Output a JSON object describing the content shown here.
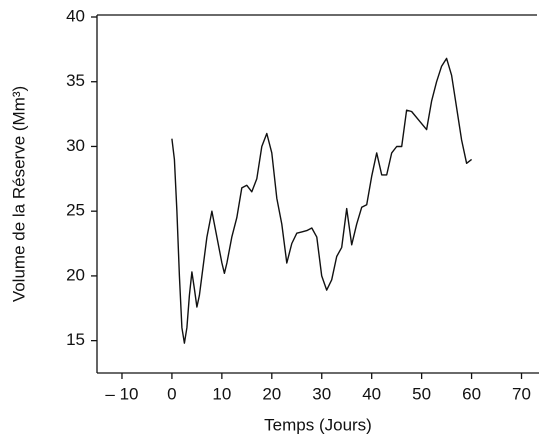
{
  "chart_data": {
    "type": "line",
    "x_label": "Temps (Jours)",
    "y_label": "Volume de la Réserve (Mm³)",
    "color": "#111111",
    "x": [
      0,
      0.5,
      1,
      1.5,
      2,
      2.5,
      3,
      3.5,
      4,
      4.5,
      5,
      5.5,
      6,
      7,
      8,
      9,
      10,
      10.5,
      11,
      12,
      13,
      14,
      15,
      16,
      17,
      18,
      19,
      20,
      21,
      22,
      23,
      24,
      25,
      26,
      27,
      28,
      29,
      30,
      31,
      32,
      33,
      34,
      35,
      36,
      37,
      38,
      39,
      40,
      41,
      42,
      43,
      44,
      45,
      46,
      47,
      48,
      49.5,
      51,
      52,
      53,
      54,
      55,
      56,
      57,
      58,
      59,
      60
    ],
    "values": [
      30.6,
      29,
      25,
      20,
      16,
      14.8,
      16,
      18.5,
      20.3,
      19,
      17.6,
      18.5,
      20,
      23,
      25,
      23,
      21,
      20.2,
      21,
      23,
      24.5,
      26.8,
      27,
      26.5,
      27.5,
      30,
      31,
      29.5,
      26,
      24,
      21,
      22.5,
      23.3,
      23.4,
      23.5,
      23.7,
      23,
      20,
      18.9,
      19.7,
      21.5,
      22.2,
      25.2,
      22.4,
      24,
      25.3,
      25.5,
      27.7,
      29.5,
      27.8,
      27.8,
      29.5,
      30,
      30,
      32.8,
      32.7,
      32,
      31.3,
      33.5,
      35,
      36.2,
      36.8,
      35.5,
      33,
      30.5,
      28.7,
      29
    ],
    "xlim": [
      -15,
      73.5
    ],
    "ylim": [
      12.5,
      40
    ],
    "xticks": [
      {
        "value": -10,
        "label": "– 10"
      },
      0,
      10,
      20,
      30,
      40,
      50,
      60,
      70
    ],
    "yticks": [
      15,
      20,
      25,
      30,
      35,
      40
    ]
  }
}
